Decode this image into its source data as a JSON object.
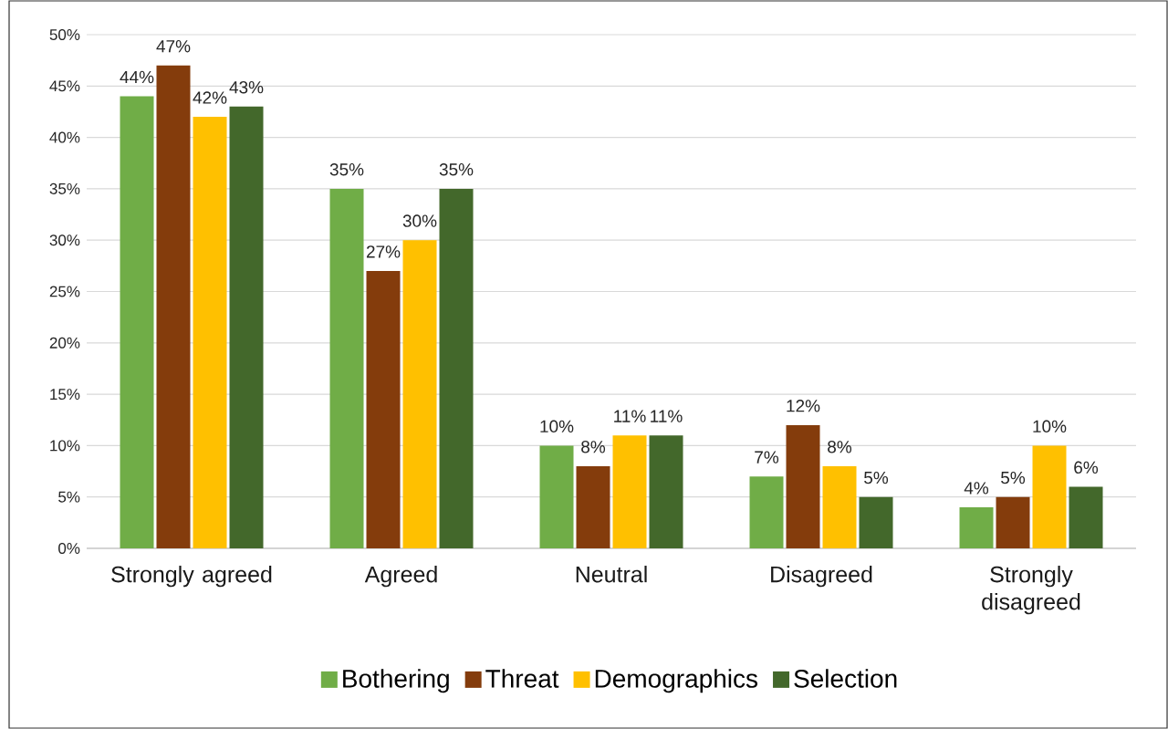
{
  "chart_data": {
    "type": "bar",
    "categories": [
      "Strongly agreed",
      "Agreed",
      "Neutral",
      "Disagreed",
      "Strongly disagreed"
    ],
    "series": [
      {
        "name": "Bothering",
        "color": "#70ad47",
        "values": [
          44,
          35,
          10,
          7,
          4
        ],
        "value_labels": [
          "44%",
          "35%",
          "10%",
          "7%",
          "4%"
        ]
      },
      {
        "name": "Threat",
        "color": "#843c0c",
        "values": [
          47,
          27,
          8,
          12,
          5
        ],
        "value_labels": [
          "47%",
          "27%",
          "8%",
          "12%",
          "5%"
        ]
      },
      {
        "name": "Demographics",
        "color": "#ffc000",
        "values": [
          42,
          30,
          11,
          8,
          10
        ],
        "value_labels": [
          "42%",
          "30%",
          "11%",
          "8%",
          "10%"
        ]
      },
      {
        "name": "Selection",
        "color": "#43682b",
        "values": [
          43,
          35,
          11,
          5,
          6
        ],
        "value_labels": [
          "43%",
          "35%",
          "11%",
          "5%",
          "6%"
        ]
      }
    ],
    "ylim": [
      0,
      50
    ],
    "yticks": [
      {
        "value": 0,
        "label": "0%"
      },
      {
        "value": 5,
        "label": "5%"
      },
      {
        "value": 10,
        "label": "10%"
      },
      {
        "value": 15,
        "label": "15%"
      },
      {
        "value": 20,
        "label": "20%"
      },
      {
        "value": 25,
        "label": "25%"
      },
      {
        "value": 30,
        "label": "30%"
      },
      {
        "value": 35,
        "label": "35%"
      },
      {
        "value": 40,
        "label": "40%"
      },
      {
        "value": 45,
        "label": "45%"
      },
      {
        "value": 50,
        "label": "50%"
      }
    ],
    "grid": "y",
    "legend": "bottom"
  }
}
